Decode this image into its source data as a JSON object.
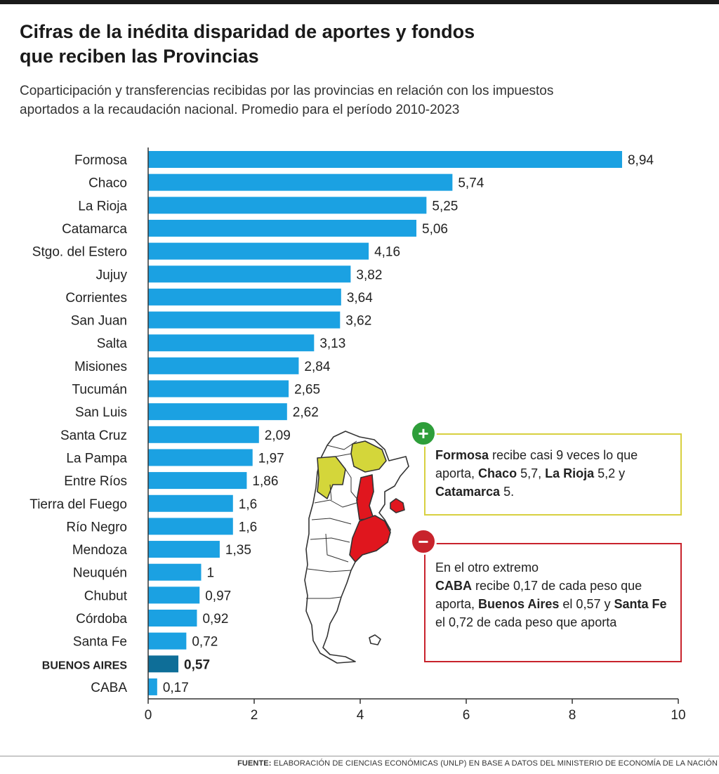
{
  "title_lines": [
    "Cifras de la inédita disparidad de aportes y fondos",
    "que reciben las Provincias"
  ],
  "subtitle_lines": [
    "Coparticipación y transferencias recibidas por las provincias en relación con los impuestos",
    "aportados a la recaudación nacional. Promedio para el período 2010-2023"
  ],
  "chart_data": {
    "type": "bar",
    "orientation": "horizontal",
    "categories": [
      "Formosa",
      "Chaco",
      "La Rioja",
      "Catamarca",
      "Stgo. del Estero",
      "Jujuy",
      "Corrientes",
      "San Juan",
      "Salta",
      "Misiones",
      "Tucumán",
      "San Luis",
      "Santa Cruz",
      "La Pampa",
      "Entre Ríos",
      "Tierra del Fuego",
      "Río Negro",
      "Mendoza",
      "Neuquén",
      "Chubut",
      "Córdoba",
      "Santa Fe",
      "BUENOS AIRES",
      "CABA"
    ],
    "values": [
      8.94,
      5.74,
      5.25,
      5.06,
      4.16,
      3.82,
      3.64,
      3.62,
      3.13,
      2.84,
      2.65,
      2.62,
      2.09,
      1.97,
      1.86,
      1.6,
      1.6,
      1.35,
      1,
      0.97,
      0.92,
      0.72,
      0.57,
      0.17
    ],
    "value_labels": [
      "8,94",
      "5,74",
      "5,25",
      "5,06",
      "4,16",
      "3,82",
      "3,64",
      "3,62",
      "3,13",
      "2,84",
      "2,65",
      "2,62",
      "2,09",
      "1,97",
      "1,86",
      "1,6",
      "1,6",
      "1,35",
      "1",
      "0,97",
      "0,92",
      "0,72",
      "0,57",
      "0,17"
    ],
    "highlight_category": "BUENOS AIRES",
    "xlim": [
      0,
      10
    ],
    "xticks": [
      0,
      2,
      4,
      6,
      8,
      10
    ],
    "bar_color": "#1ba1e2",
    "highlight_color": "#0e6e98",
    "grid": false
  },
  "callouts": {
    "plus": {
      "icon": "plus-icon",
      "color": "#d8d040",
      "parts": [
        {
          "t": "Formosa",
          "b": true
        },
        {
          "t": " recibe casi 9 veces lo que aporta, "
        },
        {
          "t": "Chaco",
          "b": true
        },
        {
          "t": " 5,7, "
        },
        {
          "t": "La Rioja",
          "b": true
        },
        {
          "t": " 5,2 y "
        },
        {
          "t": "Catamarca",
          "b": true
        },
        {
          "t": " 5."
        }
      ]
    },
    "minus": {
      "icon": "minus-icon",
      "color": "#c8232c",
      "parts": [
        {
          "t": "En el otro extremo"
        },
        {
          "br": true
        },
        {
          "t": "CABA",
          "b": true
        },
        {
          "t": " recibe 0,17 de cada peso que aporta, "
        },
        {
          "t": "Buenos Aires",
          "b": true
        },
        {
          "t": " el 0,57 y "
        },
        {
          "t": "Santa Fe",
          "b": true
        },
        {
          "t": " el 0,72 de cada peso que aporta"
        }
      ]
    }
  },
  "map": {
    "icon": "argentina-map-icon",
    "high_color": "#d4d63a",
    "low_color": "#e0161e"
  },
  "footer": {
    "label": "FUENTE:",
    "text": " ELABORACIÓN DE CIENCIAS ECONÓMICAS (UNLP) EN BASE A DATOS DEL MINISTERIO DE ECONOMÍA DE LA NACIÓN"
  }
}
